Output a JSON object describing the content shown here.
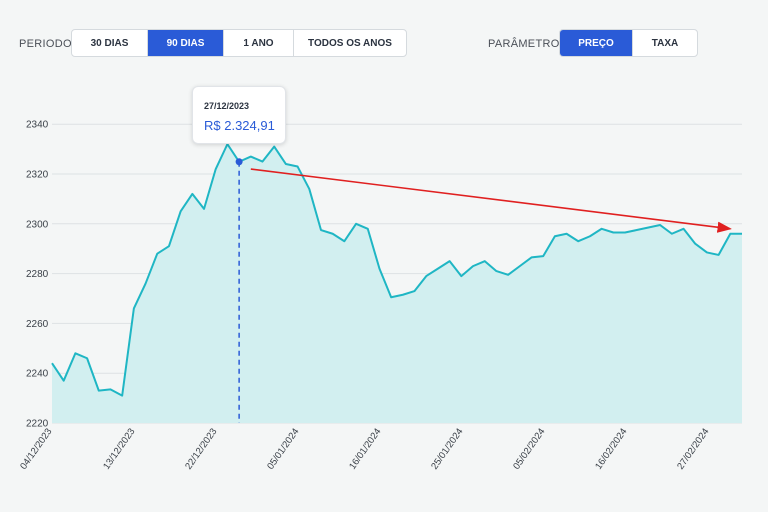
{
  "controls": {
    "period_label": "PERIODO",
    "period_options": [
      "30 DIAS",
      "90 DIAS",
      "1 ANO",
      "TODOS OS ANOS"
    ],
    "period_selected": "90 DIAS",
    "params_label": "PARÂMETROS",
    "params_options": [
      "PREÇO",
      "TAXA"
    ],
    "params_selected": "PREÇO"
  },
  "tooltip": {
    "date": "27/12/2023",
    "price": "R$ 2.324,91"
  },
  "colors": {
    "line": "#1fb6c4",
    "area": "#d2eff0",
    "accent": "#2a5bd7",
    "arrow": "#e02020"
  },
  "chart_data": {
    "type": "area",
    "title": "",
    "xlabel": "",
    "ylabel": "",
    "ylim": [
      2220,
      2345
    ],
    "yticks": [
      2220,
      2240,
      2260,
      2280,
      2300,
      2320,
      2340
    ],
    "xtick_labels": [
      "04/12/2023",
      "13/12/2023",
      "22/12/2023",
      "05/01/2024",
      "16/01/2024",
      "25/01/2024",
      "05/02/2024",
      "16/02/2024",
      "27/02/2024"
    ],
    "grid": true,
    "series": [
      {
        "values": [
          2244,
          2237,
          2248,
          2246,
          2233,
          2233.5,
          2231,
          2266,
          2276,
          2288,
          2291,
          2305,
          2312,
          2306,
          2322,
          2332,
          2324.91,
          2327,
          2325,
          2331,
          2324,
          2323,
          2314,
          2297.5,
          2296,
          2293,
          2300,
          2298,
          2282,
          2270.5,
          2271.5,
          2273,
          2279,
          2282,
          2285,
          2279,
          2283,
          2285,
          2281,
          2279.5,
          2283,
          2286.5,
          2287,
          2295,
          2296,
          2293,
          2295,
          2298,
          2296.5,
          2296.5,
          2297.5,
          2298.5,
          2299.5,
          2296,
          2298,
          2292,
          2288.5,
          2287.5,
          2296,
          2296
        ]
      }
    ],
    "highlight": {
      "date": "27/12/2023",
      "value": 2324.91,
      "index": 16
    },
    "annotation": {
      "type": "arrow",
      "from": {
        "index": 17,
        "value": 2322
      },
      "to": {
        "index": 58,
        "value": 2298
      }
    }
  }
}
